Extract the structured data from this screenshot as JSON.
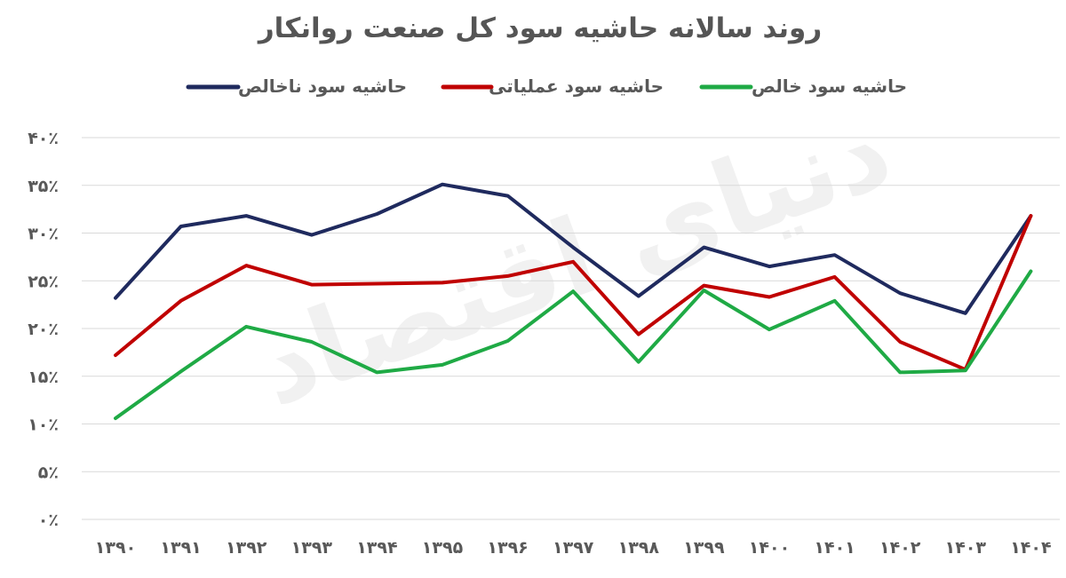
{
  "chart_data": {
    "type": "line",
    "title": "روند سالانه حاشیه سود کل صنعت روانکار",
    "watermark": "دنیای اقتصاد",
    "x": [
      "۱۳۹۰",
      "۱۳۹۱",
      "۱۳۹۲",
      "۱۳۹۳",
      "۱۳۹۴",
      "۱۳۹۵",
      "۱۳۹۶",
      "۱۳۹۷",
      "۱۳۹۸",
      "۱۳۹۹",
      "۱۴۰۰",
      "۱۴۰۱",
      "۱۴۰۲",
      "۱۴۰۳",
      "۱۴۰۴"
    ],
    "y_ticks": [
      "۰٪",
      "۵٪",
      "۱۰٪",
      "۱۵٪",
      "۲۰٪",
      "۲۵٪",
      "۳۰٪",
      "۳۵٪",
      "۴۰٪"
    ],
    "ylim": [
      0,
      40
    ],
    "grid": true,
    "legend_position": "top",
    "series": [
      {
        "name": "حاشیه سود ناخالص",
        "color": "#1f2a5e",
        "values": [
          23.2,
          30.7,
          31.8,
          29.8,
          32.0,
          35.1,
          33.9,
          28.5,
          23.4,
          28.5,
          26.5,
          27.7,
          23.7,
          21.6,
          31.8
        ]
      },
      {
        "name": "حاشیه سود عملیاتی",
        "color": "#c00000",
        "values": [
          17.2,
          22.9,
          26.6,
          24.6,
          24.7,
          24.8,
          25.5,
          27.0,
          19.4,
          24.5,
          23.3,
          25.4,
          18.6,
          15.7,
          31.8
        ]
      },
      {
        "name": "حاشیه سود خالص",
        "color": "#1faa45",
        "values": [
          10.6,
          15.5,
          20.2,
          18.6,
          15.4,
          16.2,
          18.7,
          23.9,
          16.5,
          24.0,
          19.9,
          22.9,
          15.4,
          15.6,
          26.0
        ]
      }
    ]
  }
}
